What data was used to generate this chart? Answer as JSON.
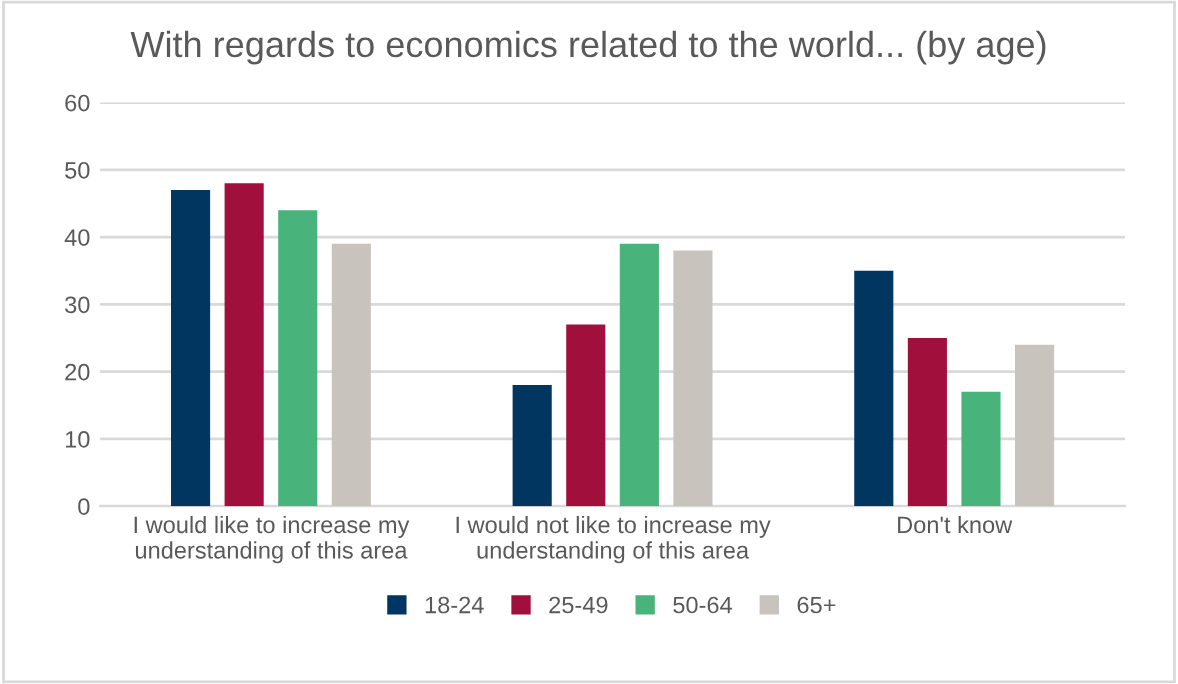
{
  "chart_data": {
    "type": "bar",
    "title": "With regards to economics related to the world... (by age)",
    "categories": [
      "I would like to increase my\nunderstanding of this area",
      "I would not like to increase my\nunderstanding of this area",
      "Don't know"
    ],
    "series": [
      {
        "name": "18-24",
        "color": "#003660",
        "values": [
          47,
          18,
          35
        ]
      },
      {
        "name": "25-49",
        "color": "#a10f3c",
        "values": [
          48,
          27,
          25
        ]
      },
      {
        "name": "50-64",
        "color": "#48b37b",
        "values": [
          44,
          39,
          17
        ]
      },
      {
        "name": "65+",
        "color": "#c8c3bc",
        "values": [
          39,
          38,
          24
        ]
      }
    ],
    "ylim": [
      0,
      60
    ],
    "yticks": [
      0,
      10,
      20,
      30,
      40,
      50,
      60
    ],
    "grid": "y",
    "legend": "bottom"
  }
}
